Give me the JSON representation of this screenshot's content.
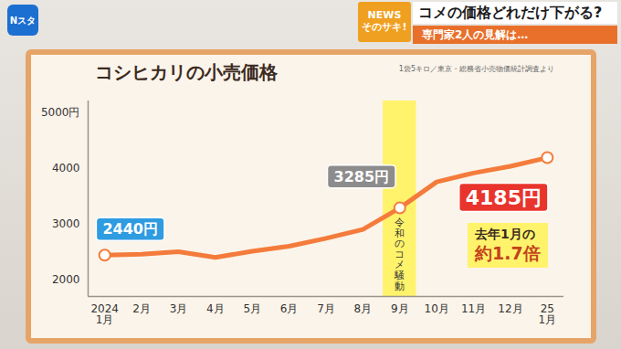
{
  "header": {
    "channel_logo": "Nスタ",
    "news_logo": [
      "NEWS",
      "そのサキ!"
    ],
    "headline": "コメの価格どれだけ下がる?",
    "subheadline": "専門家2人の見解は…"
  },
  "chart_data": {
    "type": "line",
    "title": "コシヒカリの小売価格",
    "subtitle": "1袋5キロ／東京・総務省小売物価統計調査より",
    "categories": [
      "2024\n1月",
      "2月",
      "3月",
      "4月",
      "5月",
      "6月",
      "7月",
      "8月",
      "9月",
      "10月",
      "11月",
      "12月",
      "25\n1月"
    ],
    "values": [
      2440,
      2455,
      2500,
      2400,
      2510,
      2600,
      2740,
      2900,
      3285,
      3750,
      3910,
      4030,
      4185
    ],
    "value_labels": [
      "2440円",
      null,
      null,
      null,
      null,
      null,
      null,
      null,
      "3285円",
      null,
      null,
      null,
      "4185円"
    ],
    "data_labels": true,
    "color": "#f47b3b",
    "marker": "circle",
    "ylim": [
      1700,
      5200
    ],
    "yticks": [
      2000,
      3000,
      4000,
      {
        "value": 5000,
        "label": "5000円"
      }
    ],
    "grid": false,
    "highlight": {
      "category": "9月",
      "label": "令和のコメ騒動"
    },
    "annotation": [
      "去年1月の",
      "約1.7倍"
    ]
  }
}
